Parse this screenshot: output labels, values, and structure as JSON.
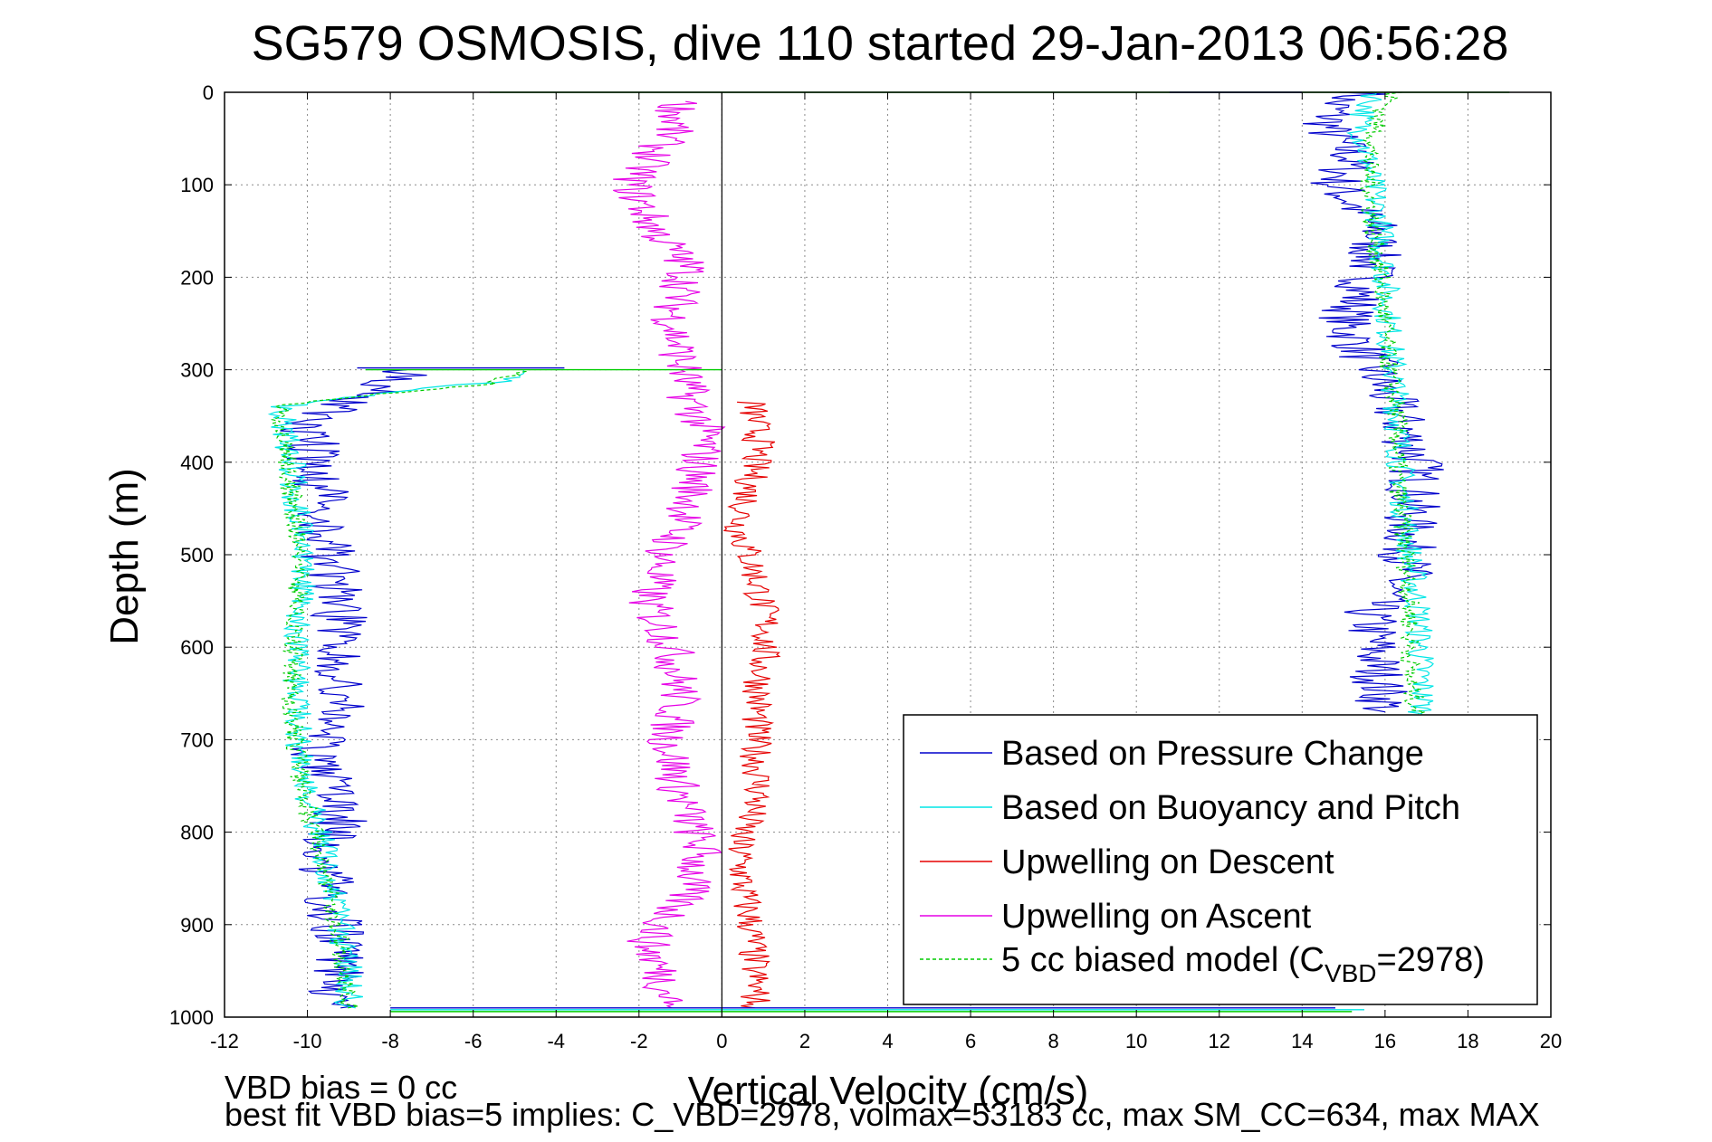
{
  "chart_data": {
    "type": "line",
    "title": "SG579 OSMOSIS, dive 110 started 29-Jan-2013 06:56:28",
    "xlabel": "Vertical Velocity (cm/s)",
    "ylabel": "Depth (m)",
    "xlim": [
      -12,
      20
    ],
    "ylim": [
      0,
      1000
    ],
    "y_reversed": true,
    "grid": true,
    "xticks": [
      "-12",
      "-10",
      "-8",
      "-6",
      "-4",
      "-2",
      "0",
      "2",
      "4",
      "6",
      "8",
      "10",
      "12",
      "14",
      "16",
      "18",
      "20"
    ],
    "yticks": [
      "0",
      "100",
      "200",
      "300",
      "400",
      "500",
      "600",
      "700",
      "800",
      "900",
      "1000"
    ],
    "legend_position": "bottom-right",
    "legend": [
      {
        "label": "Based on Pressure Change",
        "series": 0
      },
      {
        "label": "Based on Buoyancy and Pitch",
        "series": 1
      },
      {
        "label": "Upwelling on Descent",
        "series": 2
      },
      {
        "label": "Upwelling on Ascent",
        "series": 3
      },
      {
        "label_prefix": "5 cc biased model (C",
        "label_sub": "VBD",
        "label_suffix": "=2978)",
        "series": 4
      }
    ],
    "series": [
      {
        "name": "Based on Pressure Change",
        "color": "#0000cc",
        "dash": "solid",
        "noise": 0.7,
        "points": [
          [
            15.6,
            0
          ],
          [
            14.8,
            10
          ],
          [
            14.6,
            40
          ],
          [
            15.2,
            70
          ],
          [
            14.8,
            100
          ],
          [
            15.8,
            150
          ],
          [
            15.6,
            200
          ],
          [
            15.0,
            250
          ],
          [
            15.6,
            290
          ],
          [
            16.3,
            350
          ],
          [
            16.8,
            400
          ],
          [
            16.6,
            460
          ],
          [
            16.5,
            520
          ],
          [
            15.6,
            560
          ],
          [
            15.8,
            620
          ],
          [
            16.0,
            670
          ],
          [
            -9.5,
            990
          ],
          [
            -9.2,
            960
          ],
          [
            -9.3,
            900
          ],
          [
            -9.6,
            840
          ],
          [
            -9.2,
            780
          ],
          [
            -9.8,
            720
          ],
          [
            -9.2,
            660
          ],
          [
            -9.2,
            600
          ],
          [
            -9.3,
            540
          ],
          [
            -9.6,
            480
          ],
          [
            -9.7,
            420
          ],
          [
            -10.0,
            360
          ],
          [
            -9.6,
            345
          ],
          [
            -8.3,
            320
          ],
          [
            -7.6,
            300
          ]
        ],
        "segments": [
          [
            0,
            15
          ],
          [
            16,
            30
          ]
        ]
      },
      {
        "name": "Based on Buoyancy and Pitch",
        "color": "#00e6e6",
        "dash": "solid",
        "noise": 0.35,
        "points": [
          [
            15.8,
            0
          ],
          [
            15.4,
            30
          ],
          [
            15.6,
            80
          ],
          [
            15.9,
            150
          ],
          [
            16.0,
            200
          ],
          [
            16.1,
            260
          ],
          [
            16.2,
            300
          ],
          [
            16.3,
            350
          ],
          [
            16.4,
            420
          ],
          [
            16.6,
            500
          ],
          [
            16.8,
            560
          ],
          [
            16.9,
            640
          ],
          [
            16.9,
            672
          ],
          [
            -9.0,
            990
          ],
          [
            -9.0,
            950
          ],
          [
            -9.2,
            900
          ],
          [
            -9.6,
            820
          ],
          [
            -10.0,
            760
          ],
          [
            -10.2,
            700
          ],
          [
            -10.3,
            640
          ],
          [
            -10.2,
            580
          ],
          [
            -10.1,
            520
          ],
          [
            -10.2,
            460
          ],
          [
            -10.4,
            400
          ],
          [
            -10.6,
            340
          ],
          [
            -9.0,
            330
          ],
          [
            -5.0,
            310
          ],
          [
            -4.8,
            300
          ]
        ],
        "segments": [
          [
            0,
            12
          ],
          [
            13,
            27
          ]
        ]
      },
      {
        "name": "Upwelling on Descent",
        "color": "#e60000",
        "dash": "solid",
        "noise": 0.4,
        "points": [
          [
            0.7,
            335
          ],
          [
            0.9,
            380
          ],
          [
            0.6,
            440
          ],
          [
            0.4,
            470
          ],
          [
            0.8,
            520
          ],
          [
            1.1,
            580
          ],
          [
            0.9,
            640
          ],
          [
            0.8,
            700
          ],
          [
            0.9,
            760
          ],
          [
            0.4,
            810
          ],
          [
            0.5,
            860
          ],
          [
            0.7,
            900
          ],
          [
            0.8,
            960
          ],
          [
            0.8,
            990
          ]
        ],
        "segments": [
          [
            0,
            13
          ]
        ]
      },
      {
        "name": "Upwelling on Ascent",
        "color": "#e600e6",
        "dash": "solid",
        "noise": 0.55,
        "points": [
          [
            -1.0,
            10
          ],
          [
            -1.2,
            40
          ],
          [
            -2.2,
            100
          ],
          [
            -1.6,
            150
          ],
          [
            -0.8,
            190
          ],
          [
            -1.2,
            240
          ],
          [
            -1.0,
            290
          ],
          [
            -0.8,
            330
          ],
          [
            -0.4,
            370
          ],
          [
            -0.6,
            410
          ],
          [
            -0.8,
            450
          ],
          [
            -1.4,
            500
          ],
          [
            -1.8,
            550
          ],
          [
            -1.2,
            600
          ],
          [
            -1.0,
            650
          ],
          [
            -1.3,
            700
          ],
          [
            -1.0,
            760
          ],
          [
            -0.5,
            820
          ],
          [
            -0.9,
            870
          ],
          [
            -1.8,
            920
          ],
          [
            -1.4,
            960
          ],
          [
            -1.2,
            990
          ]
        ],
        "segments": [
          [
            0,
            21
          ]
        ]
      },
      {
        "name": "5 cc biased model (CVBD=2978)",
        "color": "#00cc00",
        "dash": "dashed",
        "noise": 0.25,
        "points": [
          [
            16.2,
            0
          ],
          [
            15.8,
            30
          ],
          [
            15.6,
            80
          ],
          [
            15.7,
            150
          ],
          [
            15.9,
            200
          ],
          [
            16.0,
            260
          ],
          [
            16.1,
            300
          ],
          [
            16.3,
            350
          ],
          [
            16.3,
            420
          ],
          [
            16.5,
            500
          ],
          [
            16.6,
            560
          ],
          [
            16.6,
            640
          ],
          [
            16.8,
            672
          ],
          [
            -9.0,
            990
          ],
          [
            -9.1,
            950
          ],
          [
            -9.3,
            900
          ],
          [
            -9.7,
            820
          ],
          [
            -10.1,
            760
          ],
          [
            -10.3,
            700
          ],
          [
            -10.4,
            640
          ],
          [
            -10.3,
            580
          ],
          [
            -10.2,
            520
          ],
          [
            -10.3,
            460
          ],
          [
            -10.5,
            400
          ],
          [
            -10.7,
            340
          ],
          [
            -9.5,
            332
          ],
          [
            -5.5,
            315
          ],
          [
            -4.8,
            300
          ]
        ],
        "segments": [
          [
            0,
            12
          ],
          [
            13,
            27
          ]
        ]
      }
    ],
    "surface_spikes": [
      {
        "color": "#00cc00",
        "x": [
          -5.6,
          19.0
        ],
        "y": 0
      },
      {
        "color": "#0000cc",
        "x": [
          10.8,
          14.0
        ],
        "y": 0
      },
      {
        "color": "#00e6e6",
        "x": [
          -8.0,
          15.5
        ],
        "y": 992
      },
      {
        "color": "#0000cc",
        "x": [
          -8.0,
          14.8
        ],
        "y": 990
      },
      {
        "color": "#00cc00",
        "x": [
          -8.0,
          15.2
        ],
        "y": 994
      },
      {
        "color": "#00cc00",
        "x": [
          -8.6,
          0.0
        ],
        "y": 300
      },
      {
        "color": "#0000cc",
        "x": [
          -8.8,
          -3.8
        ],
        "y": 298
      }
    ]
  },
  "footer": {
    "line1": "VBD bias = 0 cc",
    "line2": "best fit VBD bias=5 implies: C_VBD=2978, volmax=53183 cc, max SM_CC=634, max MAX"
  }
}
